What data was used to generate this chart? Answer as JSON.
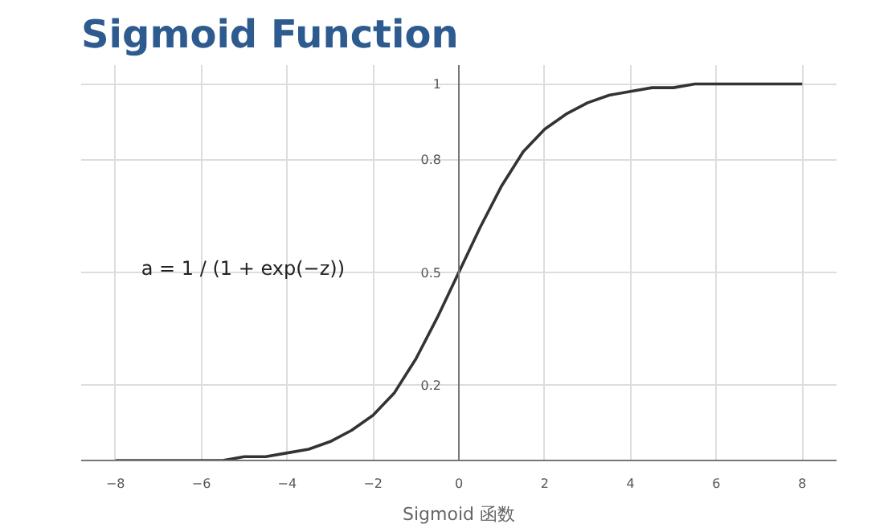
{
  "chart_data": {
    "type": "line",
    "title": "Sigmoid Function",
    "x": [
      -8,
      -7.5,
      -7,
      -6.5,
      -6,
      -5.5,
      -5,
      -4.5,
      -4,
      -3.5,
      -3,
      -2.5,
      -2,
      -1.5,
      -1,
      -0.5,
      0,
      0.5,
      1,
      1.5,
      2,
      2.5,
      3,
      3.5,
      4,
      4.5,
      5,
      5.5,
      6,
      6.5,
      7,
      7.5,
      8
    ],
    "series": [
      {
        "color": "#333333",
        "values": [
          0.0,
          0.0,
          0.0,
          0.0,
          0.0,
          0.0,
          0.01,
          0.01,
          0.02,
          0.03,
          0.05,
          0.08,
          0.12,
          0.18,
          0.27,
          0.38,
          0.5,
          0.62,
          0.73,
          0.82,
          0.88,
          0.92,
          0.95,
          0.97,
          0.98,
          0.99,
          0.99,
          1.0,
          1.0,
          1.0,
          1.0,
          1.0,
          1.0
        ]
      }
    ],
    "xlim": [
      -8.8,
      8.8
    ],
    "ylim": [
      0,
      1.05
    ],
    "xticks": [
      -8,
      -6,
      -4,
      -2,
      0,
      2,
      4,
      6,
      8
    ],
    "yticks": [
      0.2,
      0.5,
      0.8,
      1
    ],
    "grid": true,
    "marker": "none",
    "line_style": "solid",
    "annotations": [
      "a = 1 / (1 + exp(−z))",
      "Sigmoid 函数"
    ]
  }
}
